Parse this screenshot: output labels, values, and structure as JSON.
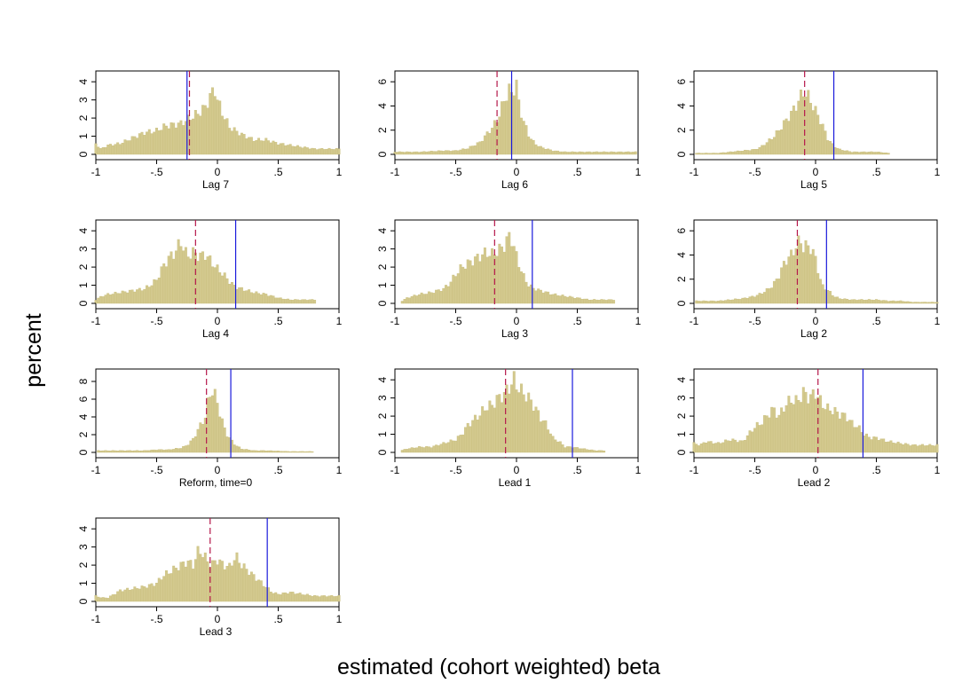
{
  "figure": {
    "ylabel": "percent",
    "xlabel": "estimated (cohort weighted) beta"
  },
  "colors": {
    "bar_fill": "#d3c98e",
    "bar_edge": "#c8bd7c",
    "solid_line": "#1a1adc",
    "dashed_line": "#b5174a",
    "axis": "#000000"
  },
  "chart_data": [
    {
      "type": "bar",
      "title": "Lag 7",
      "xlim": [
        -1,
        1
      ],
      "xticks": [
        "-1",
        "-.5",
        "0",
        ".5",
        "1"
      ],
      "ylim": [
        0,
        4.4
      ],
      "yticks": [
        0,
        1,
        2,
        3,
        4
      ],
      "solid_x": -0.25,
      "dashed_x": -0.23,
      "bin_width": 0.02,
      "bins": [
        [
          -1,
          0.6
        ],
        [
          -0.96,
          0.3
        ],
        [
          -0.9,
          0.5
        ],
        [
          -0.8,
          0.6
        ],
        [
          -0.7,
          0.9
        ],
        [
          -0.6,
          1.2
        ],
        [
          -0.5,
          1.3
        ],
        [
          -0.45,
          1.5
        ],
        [
          -0.4,
          1.6
        ],
        [
          -0.3,
          1.7
        ],
        [
          -0.25,
          1.9
        ],
        [
          -0.2,
          2.1
        ],
        [
          -0.15,
          2.3
        ],
        [
          -0.1,
          2.6
        ],
        [
          -0.06,
          3.2
        ],
        [
          -0.02,
          3.6
        ],
        [
          0,
          3.0
        ],
        [
          0.04,
          2.3
        ],
        [
          0.1,
          1.5
        ],
        [
          0.2,
          1.1
        ],
        [
          0.3,
          0.8
        ],
        [
          0.4,
          0.8
        ],
        [
          0.5,
          0.6
        ],
        [
          0.6,
          0.5
        ],
        [
          0.7,
          0.4
        ],
        [
          0.8,
          0.3
        ],
        [
          0.9,
          0.3
        ],
        [
          1,
          0.3
        ]
      ]
    },
    {
      "type": "bar",
      "title": "Lag 6",
      "xlim": [
        -1,
        1
      ],
      "xticks": [
        "-1",
        "-.5",
        "0",
        ".5",
        "1"
      ],
      "ylim": [
        0,
        6.6
      ],
      "yticks": [
        0,
        2,
        4,
        6
      ],
      "solid_x": -0.04,
      "dashed_x": -0.16,
      "bin_width": 0.02,
      "bins": [
        [
          -1,
          0.2
        ],
        [
          -0.8,
          0.2
        ],
        [
          -0.6,
          0.3
        ],
        [
          -0.5,
          0.3
        ],
        [
          -0.4,
          0.5
        ],
        [
          -0.3,
          1.0
        ],
        [
          -0.25,
          1.6
        ],
        [
          -0.2,
          2.2
        ],
        [
          -0.15,
          3.0
        ],
        [
          -0.1,
          4.5
        ],
        [
          -0.06,
          5.3
        ],
        [
          -0.04,
          5.0
        ],
        [
          -0.02,
          5.5
        ],
        [
          0,
          5.8
        ],
        [
          0.02,
          4.2
        ],
        [
          0.05,
          3.0
        ],
        [
          0.1,
          1.6
        ],
        [
          0.15,
          0.9
        ],
        [
          0.2,
          0.6
        ],
        [
          0.3,
          0.3
        ],
        [
          0.4,
          0.2
        ],
        [
          0.5,
          0.2
        ],
        [
          0.6,
          0.2
        ],
        [
          0.7,
          0.2
        ],
        [
          0.8,
          0.2
        ],
        [
          0.98,
          0.2
        ]
      ]
    },
    {
      "type": "bar",
      "title": "Lag 5",
      "xlim": [
        -1,
        1
      ],
      "xticks": [
        "-1",
        "-.5",
        "0",
        ".5",
        "1"
      ],
      "ylim": [
        0,
        6.6
      ],
      "yticks": [
        0,
        2,
        4,
        6
      ],
      "solid_x": 0.15,
      "dashed_x": -0.09,
      "bin_width": 0.02,
      "bins": [
        [
          -0.98,
          0.1
        ],
        [
          -0.8,
          0.1
        ],
        [
          -0.7,
          0.2
        ],
        [
          -0.6,
          0.3
        ],
        [
          -0.5,
          0.4
        ],
        [
          -0.45,
          0.6
        ],
        [
          -0.4,
          1.0
        ],
        [
          -0.35,
          1.4
        ],
        [
          -0.3,
          2.0
        ],
        [
          -0.25,
          2.7
        ],
        [
          -0.2,
          3.4
        ],
        [
          -0.15,
          4.2
        ],
        [
          -0.1,
          5.2
        ],
        [
          -0.08,
          5.0
        ],
        [
          -0.05,
          4.6
        ],
        [
          0,
          3.6
        ],
        [
          0.05,
          2.6
        ],
        [
          0.1,
          1.3
        ],
        [
          0.15,
          0.7
        ],
        [
          0.2,
          0.4
        ],
        [
          0.3,
          0.2
        ],
        [
          0.4,
          0.2
        ],
        [
          0.5,
          0.2
        ],
        [
          0.6,
          0.1
        ]
      ]
    },
    {
      "type": "bar",
      "title": "Lag 4",
      "xlim": [
        -1,
        1
      ],
      "xticks": [
        "-1",
        "-.5",
        "0",
        ".5",
        "1"
      ],
      "ylim": [
        0,
        4.4
      ],
      "yticks": [
        0,
        1,
        2,
        3,
        4
      ],
      "solid_x": 0.15,
      "dashed_x": -0.18,
      "bin_width": 0.02,
      "bins": [
        [
          -1,
          0.2
        ],
        [
          -0.95,
          0.4
        ],
        [
          -0.9,
          0.5
        ],
        [
          -0.8,
          0.6
        ],
        [
          -0.7,
          0.7
        ],
        [
          -0.6,
          0.8
        ],
        [
          -0.55,
          1.0
        ],
        [
          -0.5,
          1.3
        ],
        [
          -0.45,
          2.0
        ],
        [
          -0.4,
          2.5
        ],
        [
          -0.35,
          2.8
        ],
        [
          -0.3,
          3.4
        ],
        [
          -0.25,
          2.6
        ],
        [
          -0.2,
          2.8
        ],
        [
          -0.15,
          2.6
        ],
        [
          -0.1,
          2.7
        ],
        [
          -0.05,
          2.3
        ],
        [
          0,
          1.9
        ],
        [
          0.05,
          1.6
        ],
        [
          0.1,
          1.2
        ],
        [
          0.15,
          0.9
        ],
        [
          0.2,
          0.8
        ],
        [
          0.3,
          0.6
        ],
        [
          0.4,
          0.5
        ],
        [
          0.5,
          0.3
        ],
        [
          0.6,
          0.2
        ],
        [
          0.7,
          0.2
        ],
        [
          0.8,
          0.2
        ]
      ]
    },
    {
      "type": "bar",
      "title": "Lag 3",
      "xlim": [
        -1,
        1
      ],
      "xticks": [
        "-1",
        "-.5",
        "0",
        ".5",
        "1"
      ],
      "ylim": [
        0,
        4.4
      ],
      "yticks": [
        0,
        1,
        2,
        3,
        4
      ],
      "solid_x": 0.13,
      "dashed_x": -0.18,
      "bin_width": 0.02,
      "bins": [
        [
          -0.95,
          0.1
        ],
        [
          -0.9,
          0.3
        ],
        [
          -0.8,
          0.5
        ],
        [
          -0.7,
          0.6
        ],
        [
          -0.6,
          0.8
        ],
        [
          -0.55,
          1.1
        ],
        [
          -0.5,
          1.6
        ],
        [
          -0.45,
          2.0
        ],
        [
          -0.4,
          2.2
        ],
        [
          -0.35,
          2.4
        ],
        [
          -0.3,
          2.6
        ],
        [
          -0.25,
          2.8
        ],
        [
          -0.2,
          2.7
        ],
        [
          -0.15,
          2.9
        ],
        [
          -0.1,
          3.2
        ],
        [
          -0.05,
          3.8
        ],
        [
          0,
          2.6
        ],
        [
          0.05,
          1.6
        ],
        [
          0.1,
          1.0
        ],
        [
          0.15,
          0.8
        ],
        [
          0.2,
          0.7
        ],
        [
          0.3,
          0.5
        ],
        [
          0.4,
          0.4
        ],
        [
          0.5,
          0.3
        ],
        [
          0.6,
          0.2
        ],
        [
          0.7,
          0.2
        ],
        [
          0.8,
          0.2
        ]
      ]
    },
    {
      "type": "bar",
      "title": "Lag 2",
      "xlim": [
        -1,
        1
      ],
      "xticks": [
        "-1",
        "-.5",
        "0",
        ".5",
        "1"
      ],
      "ylim": [
        0,
        6.6
      ],
      "yticks": [
        0,
        2,
        4,
        6
      ],
      "solid_x": 0.09,
      "dashed_x": -0.15,
      "bin_width": 0.02,
      "bins": [
        [
          -0.98,
          0.2
        ],
        [
          -0.9,
          0.2
        ],
        [
          -0.8,
          0.2
        ],
        [
          -0.7,
          0.3
        ],
        [
          -0.6,
          0.4
        ],
        [
          -0.5,
          0.6
        ],
        [
          -0.45,
          0.8
        ],
        [
          -0.4,
          1.1
        ],
        [
          -0.35,
          1.5
        ],
        [
          -0.3,
          2.3
        ],
        [
          -0.25,
          3.5
        ],
        [
          -0.2,
          4.0
        ],
        [
          -0.15,
          4.9
        ],
        [
          -0.12,
          5.2
        ],
        [
          -0.1,
          4.6
        ],
        [
          -0.05,
          4.8
        ],
        [
          0,
          3.7
        ],
        [
          0.05,
          1.5
        ],
        [
          0.1,
          1.1
        ],
        [
          0.15,
          0.6
        ],
        [
          0.2,
          0.4
        ],
        [
          0.3,
          0.3
        ],
        [
          0.4,
          0.3
        ],
        [
          0.5,
          0.3
        ],
        [
          0.6,
          0.2
        ],
        [
          0.7,
          0.2
        ],
        [
          0.8,
          0.1
        ],
        [
          1,
          0.1
        ]
      ]
    },
    {
      "type": "bar",
      "title": "Reform, time=0",
      "xlim": [
        -1,
        1
      ],
      "xticks": [
        "-1",
        "-.5",
        "0",
        ".5",
        "1"
      ],
      "ylim": [
        0,
        9
      ],
      "yticks": [
        0,
        2,
        4,
        6,
        8
      ],
      "solid_x": 0.11,
      "dashed_x": -0.09,
      "bin_width": 0.02,
      "bins": [
        [
          -0.98,
          0.2
        ],
        [
          -0.8,
          0.2
        ],
        [
          -0.7,
          0.2
        ],
        [
          -0.6,
          0.2
        ],
        [
          -0.5,
          0.3
        ],
        [
          -0.4,
          0.3
        ],
        [
          -0.3,
          0.5
        ],
        [
          -0.25,
          0.8
        ],
        [
          -0.2,
          1.5
        ],
        [
          -0.15,
          2.8
        ],
        [
          -0.1,
          4.0
        ],
        [
          -0.08,
          5.5
        ],
        [
          -0.05,
          7.2
        ],
        [
          -0.02,
          6.4
        ],
        [
          0,
          5.6
        ],
        [
          0.02,
          4.5
        ],
        [
          0.05,
          3.0
        ],
        [
          0.08,
          2.0
        ],
        [
          0.1,
          1.6
        ],
        [
          0.15,
          0.8
        ],
        [
          0.2,
          0.4
        ],
        [
          0.3,
          0.2
        ],
        [
          0.4,
          0.2
        ],
        [
          0.6,
          0.1
        ],
        [
          0.78,
          0.1
        ]
      ]
    },
    {
      "type": "bar",
      "title": "Lead 1",
      "xlim": [
        -1,
        1
      ],
      "xticks": [
        "-1",
        "-.5",
        "0",
        ".5",
        "1"
      ],
      "ylim": [
        0,
        4.4
      ],
      "yticks": [
        0,
        1,
        2,
        3,
        4
      ],
      "solid_x": 0.46,
      "dashed_x": -0.09,
      "bin_width": 0.02,
      "bins": [
        [
          -0.95,
          0.1
        ],
        [
          -0.9,
          0.2
        ],
        [
          -0.8,
          0.3
        ],
        [
          -0.7,
          0.3
        ],
        [
          -0.6,
          0.5
        ],
        [
          -0.5,
          0.7
        ],
        [
          -0.45,
          1.0
        ],
        [
          -0.4,
          1.5
        ],
        [
          -0.35,
          1.8
        ],
        [
          -0.3,
          2.1
        ],
        [
          -0.25,
          2.5
        ],
        [
          -0.2,
          2.6
        ],
        [
          -0.15,
          3.0
        ],
        [
          -0.1,
          3.2
        ],
        [
          -0.06,
          3.6
        ],
        [
          -0.02,
          4.0
        ],
        [
          0,
          3.7
        ],
        [
          0.05,
          3.3
        ],
        [
          0.1,
          3.0
        ],
        [
          0.15,
          2.5
        ],
        [
          0.2,
          1.9
        ],
        [
          0.25,
          1.5
        ],
        [
          0.3,
          0.8
        ],
        [
          0.35,
          0.6
        ],
        [
          0.4,
          0.3
        ],
        [
          0.45,
          0.3
        ],
        [
          0.55,
          0.2
        ],
        [
          0.65,
          0.1
        ],
        [
          0.72,
          0.1
        ]
      ]
    },
    {
      "type": "bar",
      "title": "Lead 2",
      "xlim": [
        -1,
        1
      ],
      "xticks": [
        "-1",
        "-.5",
        "0",
        ".5",
        "1"
      ],
      "ylim": [
        0,
        4.4
      ],
      "yticks": [
        0,
        1,
        2,
        3,
        4
      ],
      "solid_x": 0.39,
      "dashed_x": 0.02,
      "bin_width": 0.02,
      "bins": [
        [
          -1,
          0.5
        ],
        [
          -0.95,
          0.4
        ],
        [
          -0.9,
          0.6
        ],
        [
          -0.8,
          0.5
        ],
        [
          -0.7,
          0.7
        ],
        [
          -0.6,
          0.6
        ],
        [
          -0.55,
          1.0
        ],
        [
          -0.5,
          1.4
        ],
        [
          -0.45,
          1.6
        ],
        [
          -0.4,
          2.0
        ],
        [
          -0.35,
          2.4
        ],
        [
          -0.3,
          2.0
        ],
        [
          -0.25,
          2.6
        ],
        [
          -0.2,
          2.9
        ],
        [
          -0.15,
          2.8
        ],
        [
          -0.1,
          3.3
        ],
        [
          -0.05,
          3.0
        ],
        [
          0,
          3.3
        ],
        [
          0.05,
          2.7
        ],
        [
          0.1,
          2.4
        ],
        [
          0.15,
          2.3
        ],
        [
          0.2,
          2.1
        ],
        [
          0.25,
          2.0
        ],
        [
          0.3,
          1.6
        ],
        [
          0.35,
          1.4
        ],
        [
          0.4,
          1.0
        ],
        [
          0.45,
          0.8
        ],
        [
          0.5,
          0.8
        ],
        [
          0.6,
          0.6
        ],
        [
          0.7,
          0.5
        ],
        [
          0.8,
          0.4
        ],
        [
          0.9,
          0.4
        ],
        [
          1,
          0.4
        ]
      ]
    },
    {
      "type": "bar",
      "title": "Lead 3",
      "xlim": [
        -1,
        1
      ],
      "xticks": [
        "-1",
        "-.5",
        "0",
        ".5",
        "1"
      ],
      "ylim": [
        0,
        4.4
      ],
      "yticks": [
        0,
        1,
        2,
        3,
        4
      ],
      "solid_x": 0.41,
      "dashed_x": -0.06,
      "bin_width": 0.02,
      "bins": [
        [
          -1,
          0.3
        ],
        [
          -0.95,
          0.2
        ],
        [
          -0.9,
          0.2
        ],
        [
          -0.85,
          0.4
        ],
        [
          -0.8,
          0.6
        ],
        [
          -0.7,
          0.7
        ],
        [
          -0.6,
          0.8
        ],
        [
          -0.55,
          0.9
        ],
        [
          -0.5,
          1.0
        ],
        [
          -0.45,
          1.4
        ],
        [
          -0.4,
          1.6
        ],
        [
          -0.35,
          1.8
        ],
        [
          -0.3,
          2.0
        ],
        [
          -0.25,
          2.2
        ],
        [
          -0.2,
          2.0
        ],
        [
          -0.15,
          2.9
        ],
        [
          -0.1,
          2.4
        ],
        [
          -0.05,
          2.0
        ],
        [
          0,
          2.3
        ],
        [
          0.05,
          2.0
        ],
        [
          0.1,
          1.9
        ],
        [
          0.15,
          2.5
        ],
        [
          0.2,
          2.0
        ],
        [
          0.25,
          1.7
        ],
        [
          0.3,
          1.4
        ],
        [
          0.35,
          1.1
        ],
        [
          0.4,
          0.8
        ],
        [
          0.45,
          0.5
        ],
        [
          0.5,
          0.4
        ],
        [
          0.6,
          0.5
        ],
        [
          0.7,
          0.4
        ],
        [
          0.8,
          0.3
        ],
        [
          0.9,
          0.3
        ],
        [
          1,
          0.3
        ]
      ]
    }
  ]
}
